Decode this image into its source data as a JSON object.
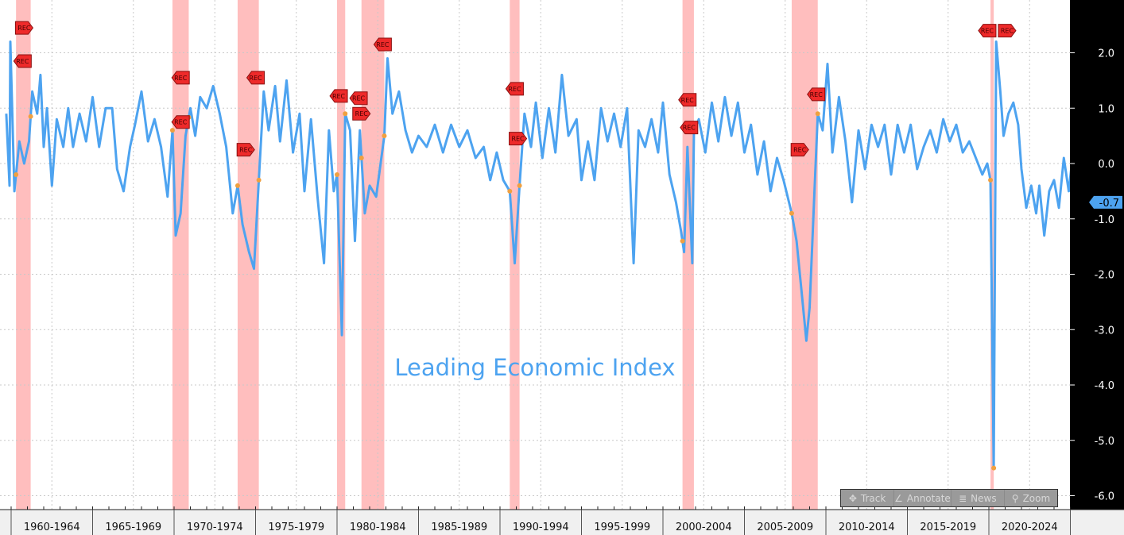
{
  "chart_data": {
    "type": "line",
    "title": "Leading Economic Index",
    "ylim": [
      -6.2,
      2.6
    ],
    "yticks": [
      "2.0",
      "1.0",
      "0.0",
      "-1.0",
      "-2.0",
      "-3.0",
      "-4.0",
      "-5.0",
      "-6.0"
    ],
    "ytick_values": [
      2,
      1,
      0,
      -1,
      -2,
      -3,
      -4,
      -5,
      -6
    ],
    "xlim": [
      1959.3,
      2026.5
    ],
    "xtick_labels": [
      "1960-1964",
      "1965-1969",
      "1970-1974",
      "1975-1979",
      "1980-1984",
      "1985-1989",
      "1990-1994",
      "1995-1999",
      "2000-2004",
      "2005-2009",
      "2010-2014",
      "2015-2019",
      "2020-2024"
    ],
    "grid": true,
    "line_color": "#4da3f0",
    "recession_color": "#ffb3b3",
    "last_value": "-0.7",
    "recessions": [
      [
        1960.3,
        1961.2
      ],
      [
        1969.9,
        1970.9
      ],
      [
        1973.9,
        1975.2
      ],
      [
        1980.0,
        1980.5
      ],
      [
        1981.5,
        1982.9
      ],
      [
        1990.6,
        1991.2
      ],
      [
        2001.2,
        2001.9
      ],
      [
        2007.9,
        2009.5
      ],
      [
        2020.1,
        2020.3
      ]
    ],
    "rec_markers": [
      {
        "label": "REC",
        "x": 1960.8,
        "y": 2.45,
        "dir": "right"
      },
      {
        "label": "REC",
        "x": 1960.7,
        "y": 1.85,
        "dir": "left"
      },
      {
        "label": "REC",
        "x": 1970.4,
        "y": 1.55,
        "dir": "left"
      },
      {
        "label": "REC",
        "x": 1970.4,
        "y": 0.75,
        "dir": "left"
      },
      {
        "label": "REC",
        "x": 1974.4,
        "y": 0.25,
        "dir": "right"
      },
      {
        "label": "REC",
        "x": 1975.0,
        "y": 1.55,
        "dir": "left"
      },
      {
        "label": "REC",
        "x": 1980.1,
        "y": 1.22,
        "dir": "left"
      },
      {
        "label": "REC",
        "x": 1980.5,
        "y": 1.18,
        "dir": "left"
      },
      {
        "label": "REC",
        "x": 1981.5,
        "y": 0.9,
        "dir": "right"
      },
      {
        "label": "REC",
        "x": 1982.8,
        "y": 2.15,
        "dir": "left"
      },
      {
        "label": "REC",
        "x": 1990.9,
        "y": 1.35,
        "dir": "left"
      },
      {
        "label": "REC",
        "x": 1991.1,
        "y": 0.45,
        "dir": "right"
      },
      {
        "label": "REC",
        "x": 2001.5,
        "y": 1.15,
        "dir": "left"
      },
      {
        "label": "REC",
        "x": 2001.6,
        "y": 0.65,
        "dir": "left"
      },
      {
        "label": "REC",
        "x": 2008.4,
        "y": 0.25,
        "dir": "right"
      },
      {
        "label": "REC",
        "x": 2009.4,
        "y": 1.25,
        "dir": "left"
      },
      {
        "label": "REC",
        "x": 2019.9,
        "y": 2.4,
        "dir": "left"
      },
      {
        "label": "REC",
        "x": 2020.6,
        "y": 2.4,
        "dir": "right"
      }
    ],
    "x": [
      1959.7,
      1959.9,
      1959.95,
      1960.2,
      1960.5,
      1960.8,
      1961.1,
      1961.3,
      1961.6,
      1961.8,
      1962.0,
      1962.2,
      1962.5,
      1962.8,
      1963.2,
      1963.5,
      1963.8,
      1964.2,
      1964.6,
      1965.0,
      1965.4,
      1965.8,
      1966.2,
      1966.5,
      1966.9,
      1967.3,
      1967.6,
      1968.0,
      1968.4,
      1968.8,
      1969.2,
      1969.6,
      1969.9,
      1970.1,
      1970.4,
      1970.7,
      1971.0,
      1971.3,
      1971.6,
      1972.0,
      1972.4,
      1972.8,
      1973.2,
      1973.6,
      1973.9,
      1974.2,
      1974.6,
      1974.9,
      1975.2,
      1975.5,
      1975.8,
      1976.2,
      1976.5,
      1976.9,
      1977.3,
      1977.7,
      1978.0,
      1978.4,
      1978.8,
      1979.2,
      1979.5,
      1979.8,
      1980.0,
      1980.3,
      1980.5,
      1980.8,
      1981.1,
      1981.4,
      1981.7,
      1982.0,
      1982.4,
      1982.9,
      1983.1,
      1983.4,
      1983.8,
      1984.2,
      1984.6,
      1985.0,
      1985.5,
      1986.0,
      1986.5,
      1987.0,
      1987.5,
      1988.0,
      1988.5,
      1989.0,
      1989.4,
      1989.8,
      1990.2,
      1990.6,
      1990.9,
      1991.2,
      1991.5,
      1991.9,
      1992.2,
      1992.6,
      1993.0,
      1993.4,
      1993.8,
      1994.2,
      1994.7,
      1995.0,
      1995.4,
      1995.8,
      1996.2,
      1996.6,
      1997.0,
      1997.4,
      1997.8,
      1998.2,
      1998.5,
      1998.9,
      1999.3,
      1999.7,
      2000.0,
      2000.4,
      2000.8,
      2001.1,
      2001.3,
      2001.5,
      2001.8,
      2001.9,
      2002.2,
      2002.6,
      2003.0,
      2003.4,
      2003.8,
      2004.2,
      2004.6,
      2005.0,
      2005.4,
      2005.8,
      2006.2,
      2006.6,
      2007.0,
      2007.4,
      2007.9,
      2008.2,
      2008.5,
      2008.8,
      2009.0,
      2009.3,
      2009.5,
      2009.8,
      2010.1,
      2010.4,
      2010.8,
      2011.2,
      2011.6,
      2012.0,
      2012.4,
      2012.8,
      2013.2,
      2013.6,
      2014.0,
      2014.4,
      2014.8,
      2015.2,
      2015.6,
      2016.0,
      2016.4,
      2016.8,
      2017.2,
      2017.6,
      2018.0,
      2018.4,
      2018.8,
      2019.2,
      2019.6,
      2019.9,
      2020.1,
      2020.3,
      2020.45,
      2020.7,
      2020.9,
      2021.2,
      2021.5,
      2021.8,
      2022.0,
      2022.3,
      2022.6,
      2022.9,
      2023.1,
      2023.4,
      2023.7,
      2024.0,
      2024.3,
      2024.6,
      2024.9,
      2025.2,
      2025.4,
      2025.5
    ],
    "values": [
      0.9,
      -0.4,
      2.2,
      -0.5,
      0.4,
      0,
      0.4,
      1.3,
      0.9,
      1.6,
      0.3,
      1.0,
      -0.4,
      0.8,
      0.3,
      1.0,
      0.3,
      0.9,
      0.4,
      1.2,
      0.3,
      1.0,
      1.0,
      -0.1,
      -0.5,
      0.3,
      0.7,
      1.3,
      0.4,
      0.8,
      0.3,
      -0.6,
      0.6,
      -1.3,
      -0.9,
      0.5,
      1.0,
      0.5,
      1.2,
      1.0,
      1.4,
      0.9,
      0.3,
      -0.9,
      -0.4,
      -1.1,
      -1.6,
      -1.9,
      -0.3,
      1.3,
      0.6,
      1.4,
      0.4,
      1.5,
      0.2,
      0.9,
      -0.5,
      0.8,
      -0.6,
      -1.8,
      0.6,
      -0.5,
      -0.2,
      -3.1,
      0.9,
      0.6,
      -1.4,
      0.6,
      -0.9,
      -0.4,
      -0.6,
      0.5,
      1.9,
      0.9,
      1.3,
      0.6,
      0.2,
      0.5,
      0.3,
      0.7,
      0.2,
      0.7,
      0.3,
      0.6,
      0.1,
      0.3,
      -0.3,
      0.2,
      -0.3,
      -0.5,
      -1.8,
      -0.4,
      0.9,
      0.3,
      1.1,
      0.1,
      1.0,
      0.2,
      1.6,
      0.5,
      0.8,
      -0.3,
      0.4,
      -0.3,
      1.0,
      0.4,
      0.9,
      0.3,
      1.0,
      -1.8,
      0.6,
      0.3,
      0.8,
      0.2,
      1.1,
      -0.2,
      -0.7,
      -1.2,
      -1.6,
      0.3,
      -1.8,
      0.6,
      0.8,
      0.2,
      1.1,
      0.4,
      1.2,
      0.5,
      1.1,
      0.2,
      0.7,
      -0.2,
      0.4,
      -0.5,
      0.1,
      -0.3,
      -0.9,
      -1.4,
      -2.3,
      -3.2,
      -2.6,
      -0.5,
      0.9,
      0.6,
      1.8,
      0.2,
      1.2,
      0.4,
      -0.7,
      0.6,
      -0.1,
      0.7,
      0.3,
      0.7,
      -0.2,
      0.7,
      0.2,
      0.7,
      -0.1,
      0.3,
      0.6,
      0.2,
      0.8,
      0.4,
      0.7,
      0.2,
      0.4,
      0.1,
      -0.2,
      0.0,
      -0.3,
      -5.5,
      2.2,
      1.3,
      0.5,
      0.9,
      1.1,
      0.7,
      -0.1,
      -0.8,
      -0.4,
      -0.9,
      -0.4,
      -1.3,
      -0.5,
      -0.3,
      -0.8,
      0.1,
      -0.5,
      0.3,
      -0.3,
      -0.7
    ]
  },
  "toolbar": {
    "items": [
      {
        "label": "Track",
        "icon": "crosshair-icon"
      },
      {
        "label": "Annotate",
        "icon": "pencil-icon"
      },
      {
        "label": "News",
        "icon": "news-icon"
      },
      {
        "label": "Zoom",
        "icon": "magnifier-icon"
      }
    ]
  }
}
